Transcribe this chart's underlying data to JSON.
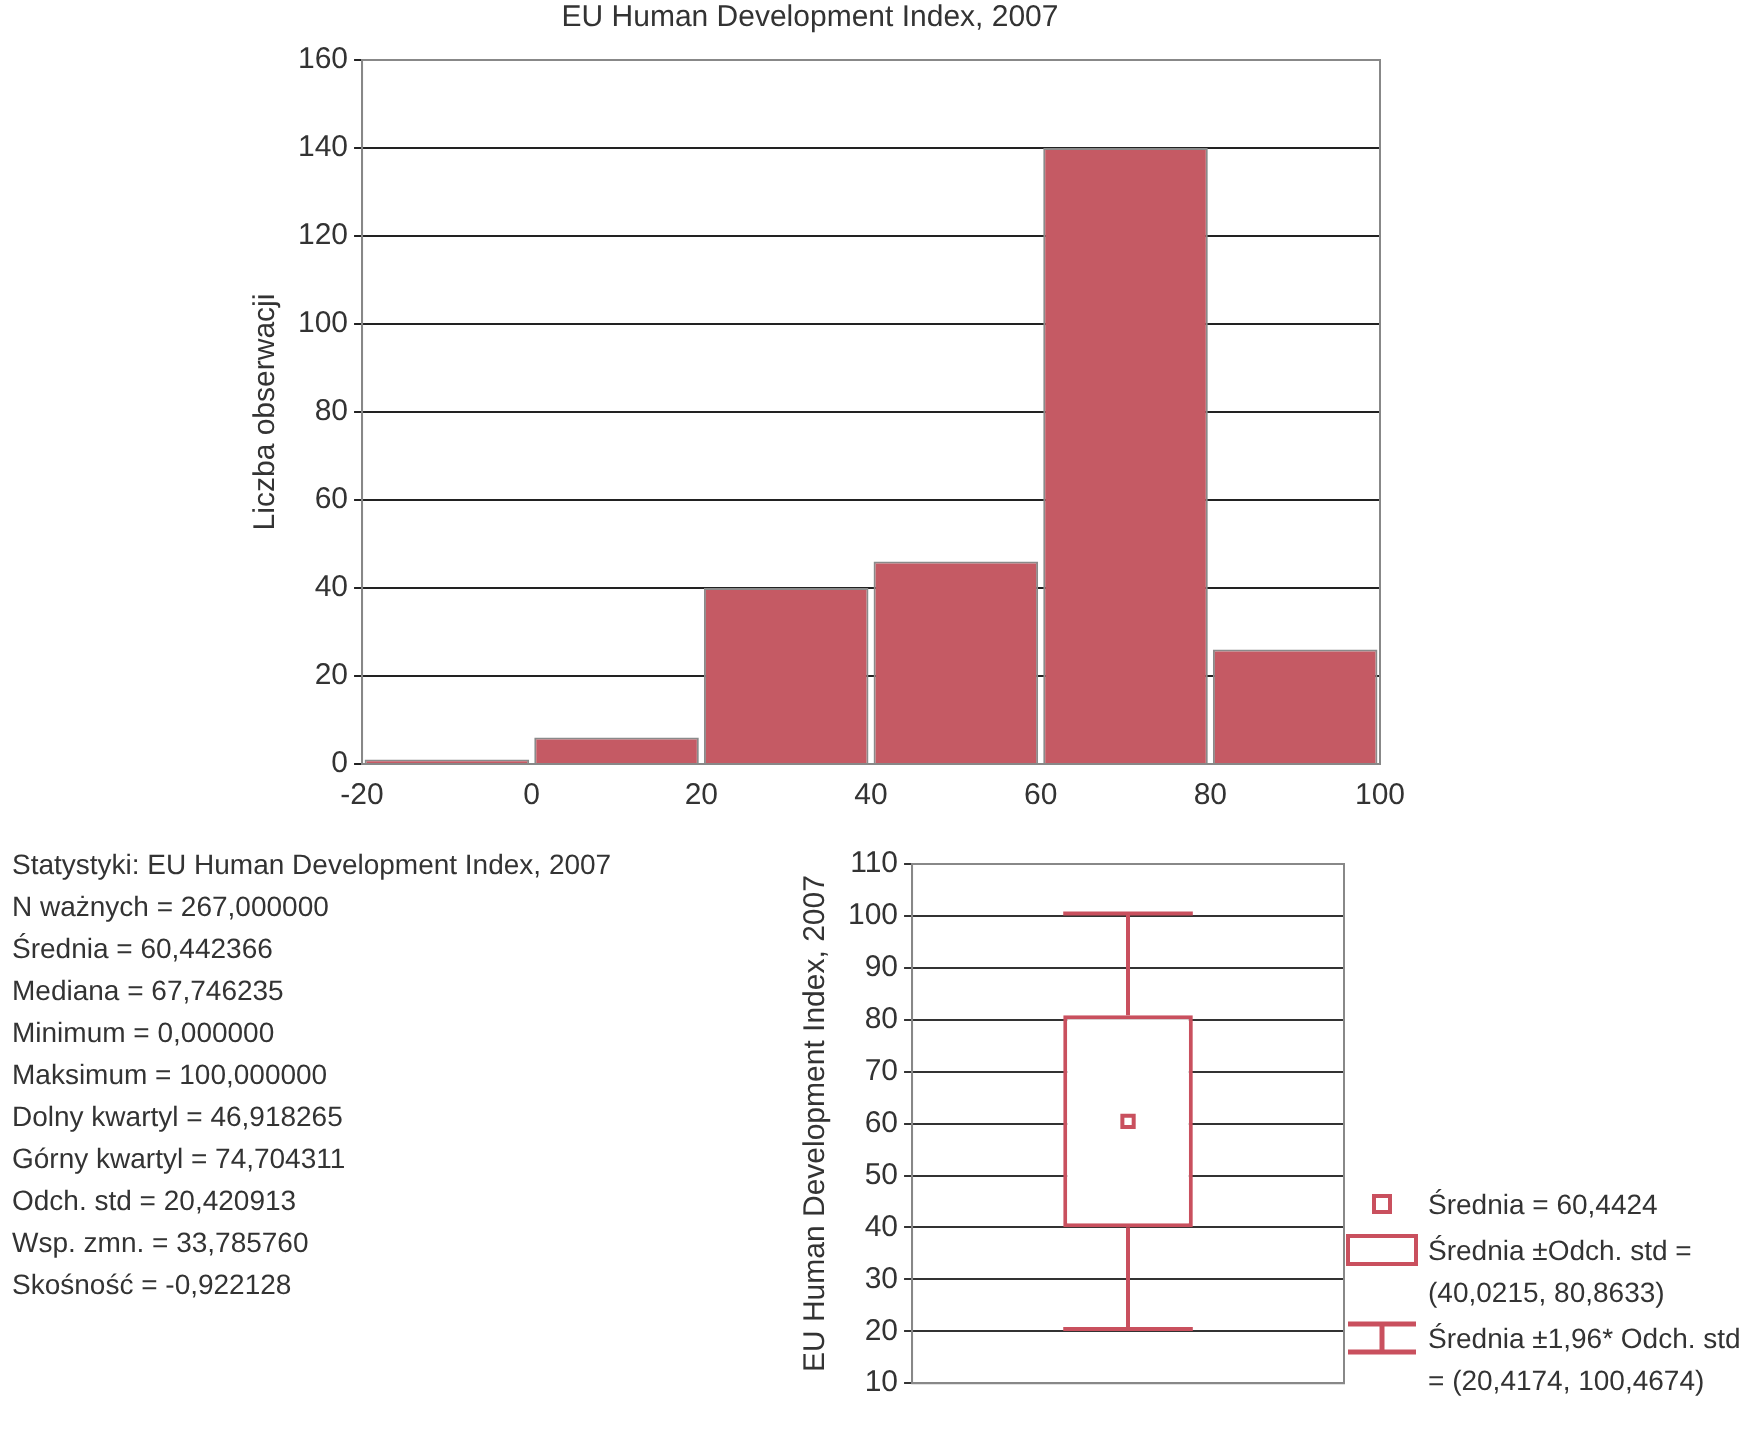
{
  "chart_data": [
    {
      "type": "histogram",
      "title": "EU Human Development Index, 2007",
      "ylabel": "Liczba obserwacji",
      "bins": [
        -20,
        0,
        20,
        40,
        60,
        80,
        100
      ],
      "values": [
        1,
        6,
        40,
        46,
        140,
        26
      ],
      "color": "#c55a64",
      "xlim": [
        -20,
        100
      ],
      "xticks": [
        -20,
        0,
        20,
        40,
        60,
        80,
        100
      ],
      "ylim": [
        0,
        160
      ],
      "yticks": [
        0,
        20,
        40,
        60,
        80,
        100,
        120,
        140,
        160
      ],
      "grid": "y"
    },
    {
      "type": "other",
      "title": "Statystyki: EU Human Development Index, 2007",
      "annotations": [
        "N ważnych = 267,000000",
        "Średnia = 60,442366",
        "Mediana = 67,746235",
        "Minimum = 0,000000",
        "Maksimum = 100,000000",
        "Dolny kwartyl = 46,918265",
        "Górny kwartyl = 74,704311",
        "Odch. std = 20,420913",
        "Wsp. zmn. = 33,785760",
        "Skośność = -0,922128"
      ]
    },
    {
      "type": "box",
      "ylabel": "EU Human Development Index, 2007",
      "categories": [
        null
      ],
      "boxes": [
        {
          "low": 20.4174,
          "q1": 40.0215,
          "median": null,
          "q3": 80.8633,
          "high": 100.4674,
          "mean": 60.4424
        }
      ],
      "color": "#c9505e",
      "ylim": [
        10,
        110
      ],
      "yticks": [
        10,
        20,
        30,
        40,
        50,
        60,
        70,
        80,
        90,
        100,
        110
      ],
      "grid": "y",
      "annotations": [
        "Średnia = 60,4424",
        "Średnia ±Odch. std = (40,0215, 80,8633)",
        "Średnia ±1,96* Odch. std = (20,4174, 100,4674)"
      ]
    }
  ]
}
